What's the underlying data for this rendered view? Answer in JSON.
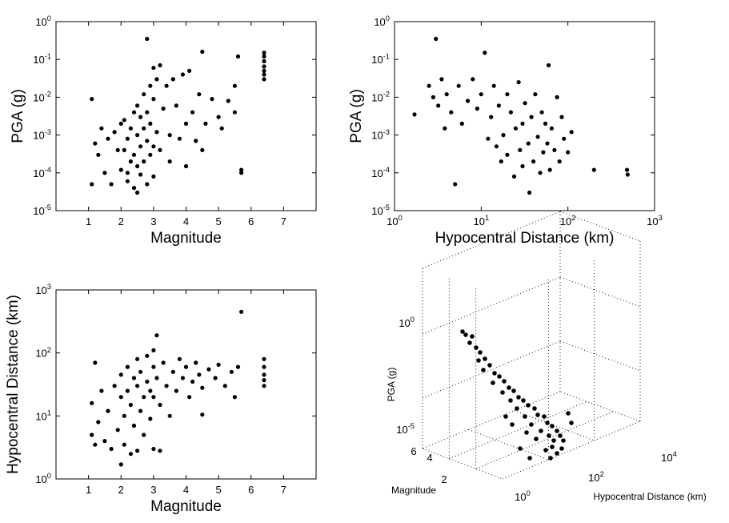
{
  "chart_data": [
    {
      "type": "scatter",
      "id": "pga-vs-magnitude",
      "xlabel": "Magnitude",
      "ylabel": "PGA (g)",
      "xscale": "linear",
      "yscale": "log",
      "xlim": [
        0,
        8
      ],
      "ylim": [
        1e-05,
        1
      ],
      "xticks": [
        1,
        2,
        3,
        4,
        5,
        6,
        7
      ],
      "xtick_labels": [
        "1",
        "2",
        "3",
        "4",
        "5",
        "6",
        "7"
      ],
      "yticks": [
        1e-05,
        0.0001,
        0.001,
        0.01,
        0.1,
        1
      ],
      "ytick_labels": [
        [
          "10",
          "-5"
        ],
        [
          "10",
          "-4"
        ],
        [
          "10",
          "-3"
        ],
        [
          "10",
          "-2"
        ],
        [
          "10",
          "-1"
        ],
        [
          "10",
          "0"
        ]
      ],
      "grid": false,
      "marker_color": "#000000",
      "points": [
        [
          1.1,
          0.009
        ],
        [
          1.1,
          5e-05
        ],
        [
          1.2,
          0.0006
        ],
        [
          1.3,
          0.0003
        ],
        [
          1.4,
          0.0015
        ],
        [
          1.5,
          0.0001
        ],
        [
          1.6,
          0.0008
        ],
        [
          1.7,
          5e-05
        ],
        [
          1.8,
          0.0012
        ],
        [
          1.9,
          0.0004
        ],
        [
          2.0,
          0.002
        ],
        [
          2.0,
          0.00012
        ],
        [
          2.1,
          0.0004
        ],
        [
          2.1,
          0.0025
        ],
        [
          2.2,
          0.0001
        ],
        [
          2.2,
          0.0008
        ],
        [
          2.2,
          6e-05
        ],
        [
          2.3,
          0.0015
        ],
        [
          2.3,
          0.0002
        ],
        [
          2.4,
          0.004
        ],
        [
          2.4,
          4e-05
        ],
        [
          2.4,
          0.0003
        ],
        [
          2.5,
          0.001
        ],
        [
          2.5,
          0.00015
        ],
        [
          2.5,
          0.006
        ],
        [
          2.5,
          3e-05
        ],
        [
          2.6,
          0.0005
        ],
        [
          2.6,
          0.003
        ],
        [
          2.6,
          9e-05
        ],
        [
          2.7,
          0.012
        ],
        [
          2.7,
          0.0002
        ],
        [
          2.7,
          0.0015
        ],
        [
          2.8,
          0.0007
        ],
        [
          2.8,
          5e-05
        ],
        [
          2.8,
          0.004
        ],
        [
          2.8,
          0.35
        ],
        [
          2.9,
          0.02
        ],
        [
          2.9,
          0.0003
        ],
        [
          2.9,
          0.002
        ],
        [
          3.0,
          0.06
        ],
        [
          3.0,
          0.0005
        ],
        [
          3.0,
          8e-05
        ],
        [
          3.0,
          0.009
        ],
        [
          3.1,
          0.03
        ],
        [
          3.1,
          0.0012
        ],
        [
          3.2,
          0.0004
        ],
        [
          3.2,
          0.07
        ],
        [
          3.3,
          0.005
        ],
        [
          3.4,
          0.02
        ],
        [
          3.5,
          0.001
        ],
        [
          3.5,
          0.0002
        ],
        [
          3.6,
          0.03
        ],
        [
          3.7,
          0.006
        ],
        [
          3.8,
          0.0008
        ],
        [
          3.9,
          0.04
        ],
        [
          4.0,
          0.002
        ],
        [
          4.0,
          0.00015
        ],
        [
          4.1,
          0.05
        ],
        [
          4.2,
          0.004
        ],
        [
          4.3,
          0.0007
        ],
        [
          4.4,
          0.012
        ],
        [
          4.5,
          0.16
        ],
        [
          4.5,
          0.0004
        ],
        [
          4.6,
          0.002
        ],
        [
          4.8,
          0.009
        ],
        [
          5.0,
          0.003
        ],
        [
          5.1,
          0.0015
        ],
        [
          5.3,
          0.008
        ],
        [
          5.5,
          0.02
        ],
        [
          5.5,
          0.004
        ],
        [
          5.6,
          0.12
        ],
        [
          5.7,
          0.0001
        ],
        [
          5.7,
          0.00012
        ],
        [
          6.4,
          0.15
        ],
        [
          6.4,
          0.12
        ],
        [
          6.4,
          0.09
        ],
        [
          6.4,
          0.065
        ],
        [
          6.4,
          0.05
        ],
        [
          6.4,
          0.04
        ],
        [
          6.4,
          0.03
        ]
      ]
    },
    {
      "type": "scatter",
      "id": "pga-vs-distance",
      "xlabel": "Hypocentral Distance (km)",
      "ylabel": "PGA (g)",
      "xscale": "log",
      "yscale": "log",
      "xlim": [
        1,
        1000
      ],
      "ylim": [
        1e-05,
        1
      ],
      "xticks": [
        1,
        10,
        100,
        1000
      ],
      "xtick_labels": [
        [
          "10",
          "0"
        ],
        [
          "10",
          "1"
        ],
        [
          "10",
          "2"
        ],
        [
          "10",
          "3"
        ]
      ],
      "yticks": [
        1e-05,
        0.0001,
        0.001,
        0.01,
        0.1,
        1
      ],
      "ytick_labels": [
        [
          "10",
          "-5"
        ],
        [
          "10",
          "-4"
        ],
        [
          "10",
          "-3"
        ],
        [
          "10",
          "-2"
        ],
        [
          "10",
          "-1"
        ],
        [
          "10",
          "0"
        ]
      ],
      "grid": false,
      "marker_color": "#000000",
      "points": [
        [
          1.7,
          0.0035
        ],
        [
          2.5,
          0.02
        ],
        [
          2.8,
          0.01
        ],
        [
          3.0,
          0.35
        ],
        [
          3.2,
          0.006
        ],
        [
          3.5,
          0.03
        ],
        [
          3.8,
          0.0015
        ],
        [
          4.0,
          0.012
        ],
        [
          4.5,
          0.004
        ],
        [
          5.0,
          5e-05
        ],
        [
          5.5,
          0.02
        ],
        [
          6.0,
          0.002
        ],
        [
          7.0,
          0.008
        ],
        [
          8.0,
          0.03
        ],
        [
          9.0,
          0.005
        ],
        [
          10,
          0.012
        ],
        [
          11,
          0.15
        ],
        [
          12,
          0.0008
        ],
        [
          13,
          0.003
        ],
        [
          14,
          0.02
        ],
        [
          15,
          0.0005
        ],
        [
          16,
          0.006
        ],
        [
          17,
          0.0002
        ],
        [
          18,
          0.001
        ],
        [
          20,
          0.012
        ],
        [
          20,
          0.0003
        ],
        [
          22,
          0.004
        ],
        [
          24,
          8e-05
        ],
        [
          25,
          0.0015
        ],
        [
          27,
          0.025
        ],
        [
          28,
          0.0004
        ],
        [
          30,
          0.002
        ],
        [
          30,
          0.00015
        ],
        [
          32,
          0.007
        ],
        [
          35,
          0.0006
        ],
        [
          36,
          3e-05
        ],
        [
          38,
          0.003
        ],
        [
          40,
          0.0002
        ],
        [
          42,
          0.012
        ],
        [
          45,
          0.0009
        ],
        [
          48,
          0.0001
        ],
        [
          50,
          0.004
        ],
        [
          52,
          0.00035
        ],
        [
          55,
          0.002
        ],
        [
          58,
          0.0006
        ],
        [
          60,
          0.07
        ],
        [
          62,
          0.00012
        ],
        [
          65,
          0.0015
        ],
        [
          70,
          0.0004
        ],
        [
          75,
          0.01
        ],
        [
          80,
          0.0002
        ],
        [
          85,
          0.003
        ],
        [
          90,
          0.0008
        ],
        [
          100,
          0.00035
        ],
        [
          110,
          0.0012
        ],
        [
          200,
          0.00012
        ],
        [
          480,
          0.00012
        ],
        [
          490,
          9e-05
        ]
      ]
    },
    {
      "type": "scatter",
      "id": "distance-vs-magnitude",
      "xlabel": "Magnitude",
      "ylabel": "Hypocentral Distance (km)",
      "xscale": "linear",
      "yscale": "log",
      "xlim": [
        0,
        8
      ],
      "ylim": [
        1,
        1000
      ],
      "xticks": [
        1,
        2,
        3,
        4,
        5,
        6,
        7
      ],
      "xtick_labels": [
        "1",
        "2",
        "3",
        "4",
        "5",
        "6",
        "7"
      ],
      "yticks": [
        1,
        10,
        100,
        1000
      ],
      "ytick_labels": [
        [
          "10",
          "0"
        ],
        [
          "10",
          "1"
        ],
        [
          "10",
          "2"
        ],
        [
          "10",
          "3"
        ]
      ],
      "grid": false,
      "marker_color": "#000000",
      "points": [
        [
          1.1,
          5
        ],
        [
          1.1,
          16
        ],
        [
          1.2,
          70
        ],
        [
          1.2,
          3.5
        ],
        [
          1.3,
          8
        ],
        [
          1.4,
          25
        ],
        [
          1.5,
          4
        ],
        [
          1.6,
          12
        ],
        [
          1.7,
          3
        ],
        [
          1.8,
          30
        ],
        [
          1.9,
          6
        ],
        [
          2.0,
          1.7
        ],
        [
          2.0,
          20
        ],
        [
          2.0,
          45
        ],
        [
          2.1,
          3.5
        ],
        [
          2.1,
          10
        ],
        [
          2.2,
          60
        ],
        [
          2.2,
          25
        ],
        [
          2.3,
          2.5
        ],
        [
          2.3,
          15
        ],
        [
          2.4,
          40
        ],
        [
          2.4,
          7
        ],
        [
          2.5,
          30
        ],
        [
          2.5,
          80
        ],
        [
          2.5,
          2.8
        ],
        [
          2.6,
          12
        ],
        [
          2.6,
          50
        ],
        [
          2.7,
          20
        ],
        [
          2.7,
          5
        ],
        [
          2.8,
          35
        ],
        [
          2.8,
          90
        ],
        [
          2.9,
          25
        ],
        [
          2.9,
          9
        ],
        [
          3.0,
          60
        ],
        [
          3.0,
          3
        ],
        [
          3.0,
          110
        ],
        [
          3.0,
          20
        ],
        [
          3.1,
          40
        ],
        [
          3.1,
          190
        ],
        [
          3.2,
          2.8
        ],
        [
          3.2,
          15
        ],
        [
          3.3,
          70
        ],
        [
          3.4,
          30
        ],
        [
          3.5,
          10
        ],
        [
          3.6,
          50
        ],
        [
          3.7,
          25
        ],
        [
          3.8,
          80
        ],
        [
          3.9,
          40
        ],
        [
          4.0,
          60
        ],
        [
          4.1,
          20
        ],
        [
          4.2,
          35
        ],
        [
          4.3,
          70
        ],
        [
          4.4,
          45
        ],
        [
          4.5,
          10.5
        ],
        [
          4.5,
          28
        ],
        [
          4.7,
          55
        ],
        [
          4.9,
          40
        ],
        [
          5.0,
          65
        ],
        [
          5.2,
          30
        ],
        [
          5.4,
          50
        ],
        [
          5.5,
          20
        ],
        [
          5.6,
          60
        ],
        [
          5.7,
          450
        ],
        [
          6.4,
          80
        ],
        [
          6.4,
          60
        ],
        [
          6.4,
          45
        ],
        [
          6.4,
          37
        ],
        [
          6.4,
          30
        ]
      ]
    },
    {
      "type": "scatter",
      "id": "pga-3d",
      "view": "3d",
      "xlabel": "Hypocentral Distance (km)",
      "ylabel": "Magnitude",
      "zlabel": "PGA (g)",
      "xscale": "log",
      "zscale": "log",
      "xticks": [
        1,
        100,
        10000
      ],
      "xtick_labels": [
        [
          "10",
          "0"
        ],
        [
          "10",
          "2"
        ],
        [
          "10",
          "4"
        ]
      ],
      "yticks": [
        2,
        4,
        6
      ],
      "ytick_labels": [
        "2",
        "4",
        "6"
      ],
      "zticks": [
        1e-05,
        1
      ],
      "ztick_labels": [
        [
          "10",
          "-5"
        ],
        [
          "10",
          "0"
        ]
      ],
      "grid": true,
      "marker_color": "#000000"
    }
  ]
}
